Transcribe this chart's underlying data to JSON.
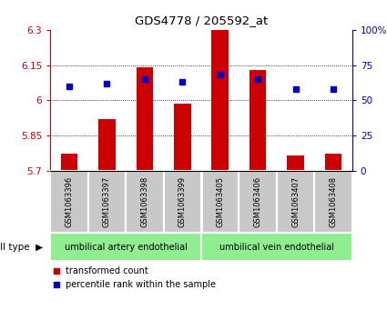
{
  "title": "GDS4778 / 205592_at",
  "samples": [
    "GSM1063396",
    "GSM1063397",
    "GSM1063398",
    "GSM1063399",
    "GSM1063405",
    "GSM1063406",
    "GSM1063407",
    "GSM1063408"
  ],
  "red_values": [
    5.775,
    5.92,
    6.14,
    5.985,
    6.3,
    6.13,
    5.765,
    5.775
  ],
  "blue_percentile": [
    60,
    62,
    65,
    63,
    68,
    65,
    58,
    58
  ],
  "ylim_left": [
    5.7,
    6.3
  ],
  "ylim_right": [
    0,
    100
  ],
  "yticks_left": [
    5.7,
    5.85,
    6.0,
    6.15,
    6.3
  ],
  "yticks_right": [
    0,
    25,
    50,
    75,
    100
  ],
  "ytick_labels_left": [
    "5.7",
    "5.85",
    "6",
    "6.15",
    "6.3"
  ],
  "ytick_labels_right": [
    "0",
    "25",
    "50",
    "75",
    "100%"
  ],
  "cell_types": [
    {
      "label": "umbilical artery endothelial",
      "start": 0,
      "end": 4,
      "color": "#90EE90"
    },
    {
      "label": "umbilical vein endothelial",
      "start": 4,
      "end": 8,
      "color": "#90EE90"
    }
  ],
  "group_boundary": 4,
  "bar_color": "#CC0000",
  "dot_color": "#0000CC",
  "bar_bottom": 5.7,
  "bar_width": 0.45,
  "legend_items": [
    {
      "color": "#CC0000",
      "label": "transformed count"
    },
    {
      "color": "#0000CC",
      "label": "percentile rank within the sample"
    }
  ],
  "cell_type_label": "cell type",
  "background_color": "#ffffff",
  "plot_bg": "#ffffff",
  "tick_area_bg": "#c8c8c8"
}
